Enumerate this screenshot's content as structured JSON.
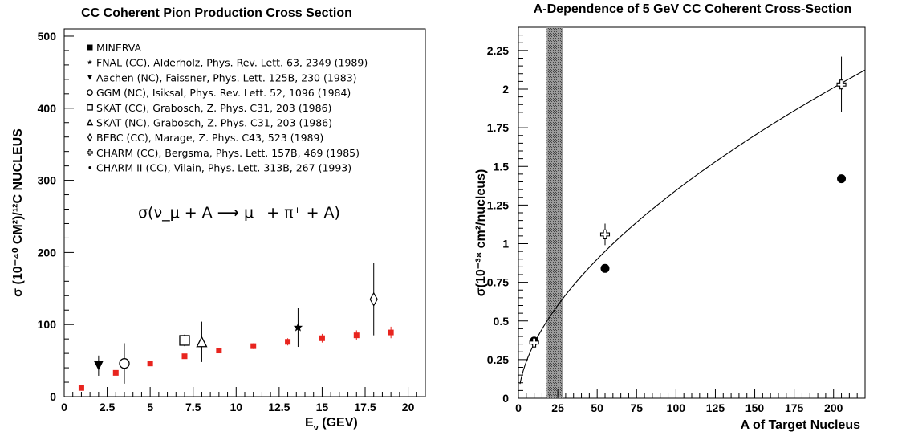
{
  "chart_data": [
    {
      "type": "scatter",
      "title": "CC Coherent Pion Production Cross Section",
      "xlabel": "E",
      "xlabel_sub": "ν",
      "xlabel_unit": " (GEV)",
      "ylabel": "σ (10⁻⁴⁰ CM²)/¹²C NUCLEUS",
      "xlim": [
        0,
        21
      ],
      "ylim": [
        0,
        510
      ],
      "x_ticks": [
        "0",
        "2.5",
        "5",
        "7.5",
        "10",
        "12.5",
        "15",
        "17.5",
        "20"
      ],
      "y_ticks": [
        "0",
        "100",
        "200",
        "300",
        "400",
        "500"
      ],
      "equation": "σ(ν_μ + A ⟶ μ⁻ + π⁺ + A)",
      "series": [
        {
          "name": "MINERVA",
          "marker": "filled-square",
          "color": "#e8241e",
          "points": [
            {
              "x": 1,
              "y": 12,
              "err": 2
            },
            {
              "x": 3,
              "y": 33,
              "err": 3
            },
            {
              "x": 5,
              "y": 46,
              "err": 3
            },
            {
              "x": 7,
              "y": 56,
              "err": 3
            },
            {
              "x": 9,
              "y": 64,
              "err": 3
            },
            {
              "x": 11,
              "y": 70,
              "err": 4
            },
            {
              "x": 13,
              "y": 76,
              "err": 5
            },
            {
              "x": 15,
              "y": 81,
              "err": 6
            },
            {
              "x": 17,
              "y": 85,
              "err": 7
            },
            {
              "x": 19,
              "y": 89,
              "err": 8
            }
          ]
        },
        {
          "name": "FNAL (CC), Alderholz, Phys. Rev. Lett. 63, 2349 (1989)",
          "marker": "filled-star",
          "color": "#000000",
          "points": [
            {
              "x": 13.6,
              "y": 96,
              "err": 27
            }
          ]
        },
        {
          "name": "Aachen (NC), Faissner, Phys. Lett. 125B, 230 (1983)",
          "marker": "filled-triangle-down",
          "color": "#000000",
          "points": [
            {
              "x": 2,
              "y": 43,
              "err": 14
            }
          ]
        },
        {
          "name": "GGM (NC), Isiksal, Phys. Rev. Lett. 52, 1096 (1984)",
          "marker": "open-circle",
          "color": "#000000",
          "points": [
            {
              "x": 3.5,
              "y": 46,
              "err": 28
            }
          ]
        },
        {
          "name": "SKAT (CC), Grabosch, Z. Phys. C31, 203 (1986)",
          "marker": "open-square",
          "color": "#000000",
          "points": [
            {
              "x": 7,
              "y": 78,
              "err": 8
            }
          ]
        },
        {
          "name": "SKAT (NC), Grabosch, Z. Phys. C31, 203 (1986)",
          "marker": "open-triangle",
          "color": "#000000",
          "points": [
            {
              "x": 8,
              "y": 76,
              "err": 28
            }
          ]
        },
        {
          "name": "BEBC (CC), Marage, Z. Phys. C43, 523 (1989)",
          "marker": "open-diamond",
          "color": "#000000",
          "points": [
            {
              "x": 18,
              "y": 135,
              "err": 50
            }
          ]
        },
        {
          "name": "CHARM (CC), Bergsma, Phys. Lett. 157B, 469 (1985)",
          "marker": "open-cross",
          "color": "#000000",
          "points": []
        },
        {
          "name": "CHARM II (CC), Vilain, Phys. Lett. 313B, 267 (1993)",
          "marker": "small-dot",
          "color": "#000000",
          "points": []
        }
      ]
    },
    {
      "type": "scatter",
      "title": "A-Dependence of 5 GeV CC Coherent Cross-Section",
      "xlabel": "A of Target Nucleus",
      "ylabel": "σ(10⁻³⁸ cm²/nucleus)",
      "xlim": [
        0,
        220
      ],
      "ylim": [
        0,
        2.4
      ],
      "x_ticks": [
        "0",
        "25",
        "50",
        "75",
        "100",
        "125",
        "150",
        "175",
        "200"
      ],
      "y_ticks": [
        "0",
        "0.25",
        "0.5",
        "0.75",
        "1",
        "1.25",
        "1.5",
        "1.75",
        "2",
        "2.25"
      ],
      "shaded_band": {
        "x_from": 18,
        "x_to": 28
      },
      "curve": {
        "form": "c * A^p",
        "c": 0.093,
        "p": 0.58
      },
      "series": [
        {
          "marker": "filled-circle",
          "points": [
            {
              "x": 10,
              "y": 0.37
            },
            {
              "x": 55,
              "y": 0.84
            },
            {
              "x": 205,
              "y": 1.42
            }
          ]
        },
        {
          "marker": "open-cross",
          "points": [
            {
              "x": 10,
              "y": 0.36,
              "err": 0.02
            },
            {
              "x": 55,
              "y": 1.06,
              "err": 0.07
            },
            {
              "x": 205,
              "y": 2.03,
              "err": 0.18
            }
          ]
        }
      ]
    }
  ]
}
